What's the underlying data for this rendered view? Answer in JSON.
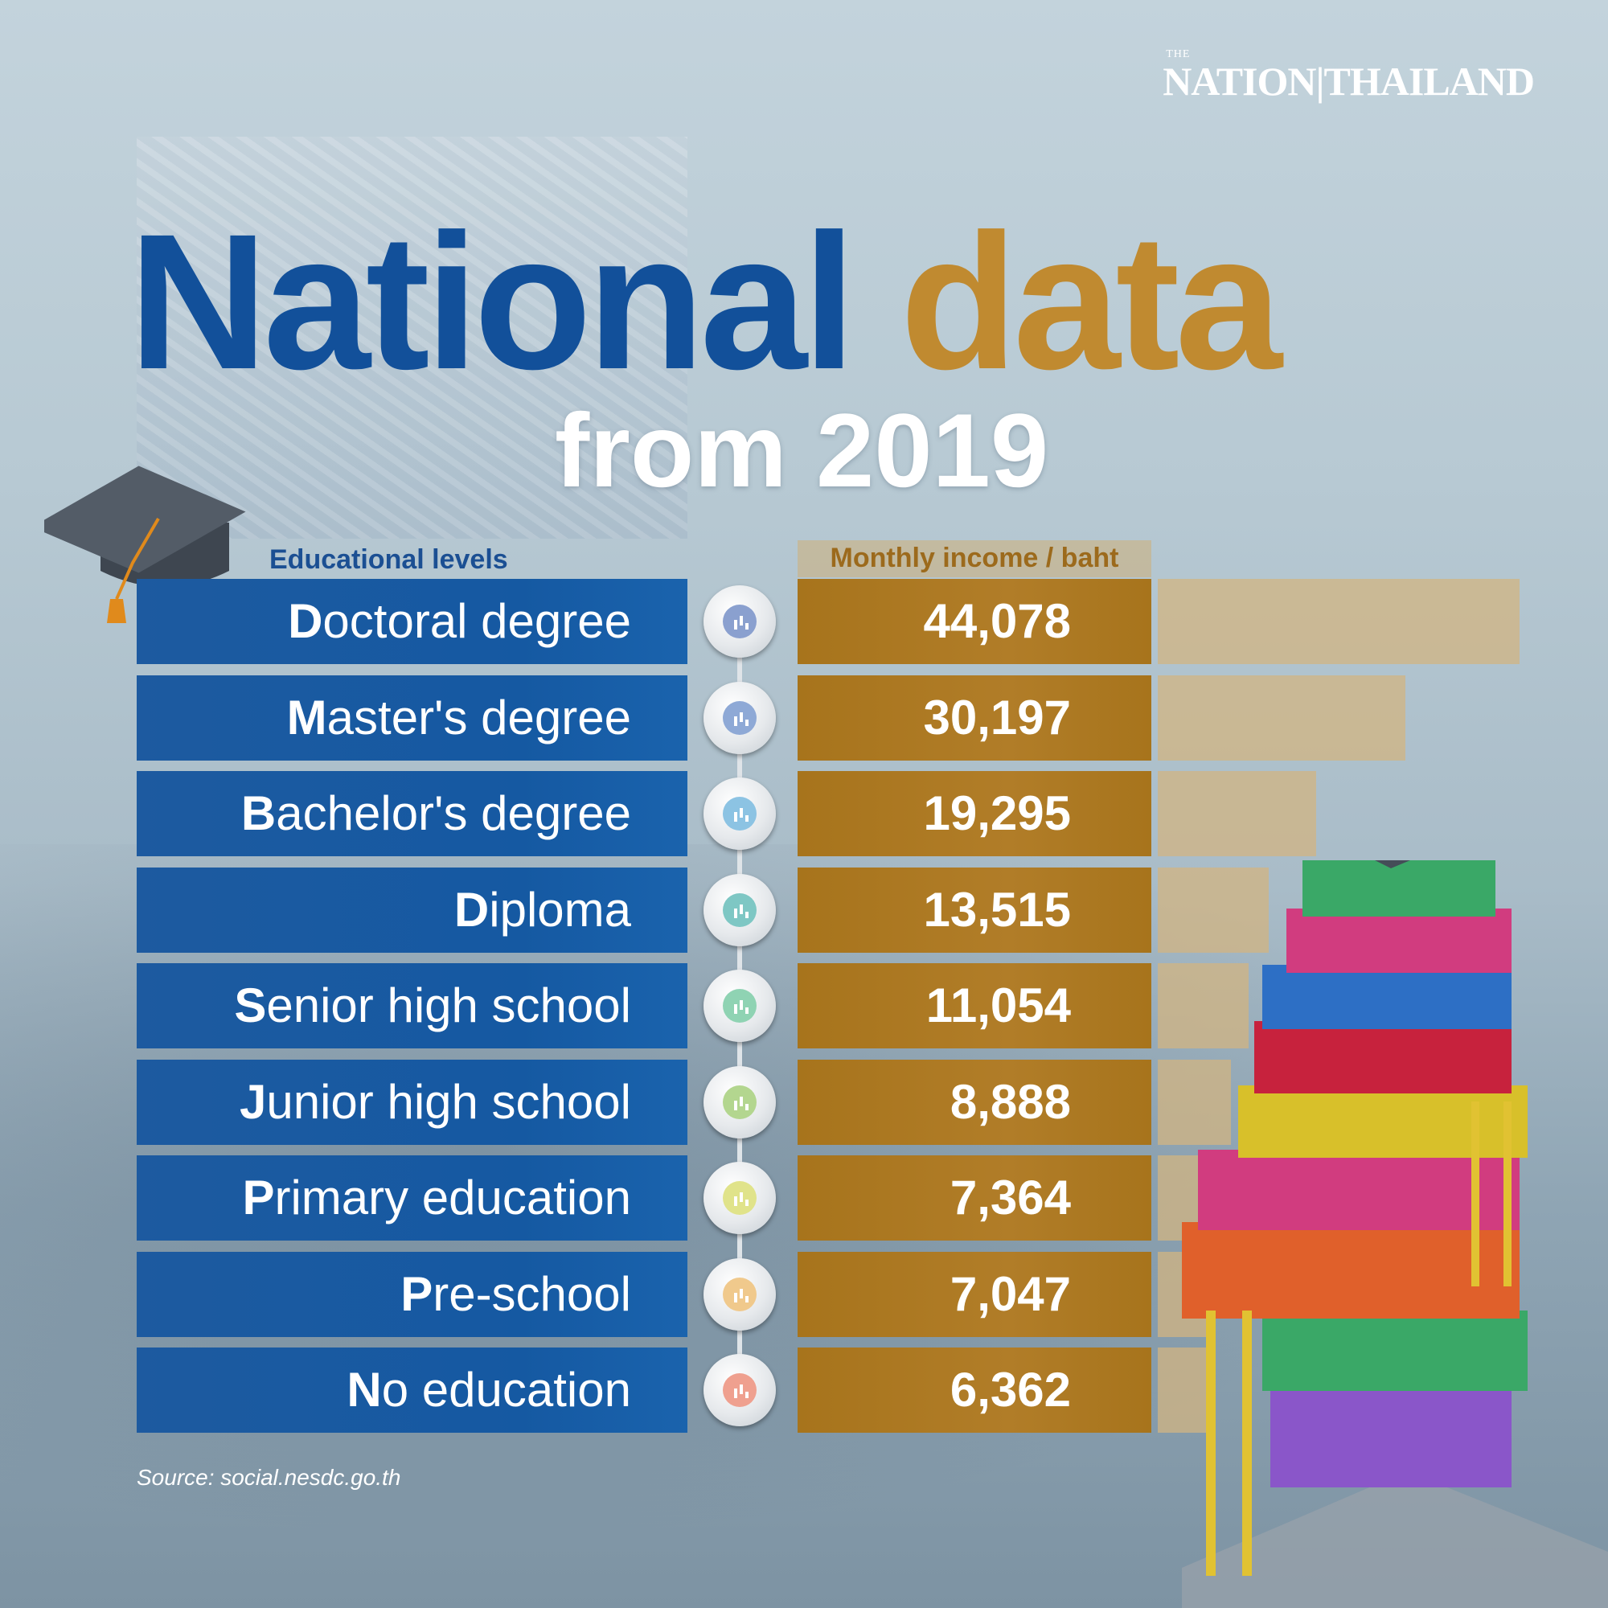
{
  "brand": {
    "small": "THE",
    "name": "NATION|THAILAND"
  },
  "title": {
    "part_a": "National",
    "part_b": "data",
    "subtitle": "from 2019"
  },
  "columns": {
    "education": "Educational levels",
    "income": "Monthly income / baht"
  },
  "source": "Source: social.nesdc.go.th",
  "colors": {
    "title_blue": "#12509a",
    "title_gold": "#c08a30",
    "row_blue": "#1559a2",
    "row_gold": "#b17d28",
    "icon_colors": [
      "#8aa0cf",
      "#8ea9d6",
      "#8cc3e3",
      "#7ec7c4",
      "#8fd3b3",
      "#b3d68f",
      "#e0e38a",
      "#f0c98c",
      "#efa08f"
    ]
  },
  "chart_data": {
    "type": "bar",
    "title": "National data from 2019",
    "xlabel": "Educational levels",
    "ylabel": "Monthly income / baht",
    "categories": [
      "Doctoral degree",
      "Master's degree",
      "Bachelor's degree",
      "Diploma",
      "Senior high school",
      "Junior high school",
      "Primary education",
      "Pre-school",
      "No education"
    ],
    "values": [
      44078,
      30197,
      19295,
      13515,
      11054,
      8888,
      7364,
      7047,
      6362
    ],
    "labels": [
      "44,078",
      "30,197",
      "19,295",
      "13,515",
      "11,054",
      "8,888",
      "7,364",
      "7,047",
      "6,362"
    ],
    "ylim": [
      0,
      44078
    ]
  }
}
